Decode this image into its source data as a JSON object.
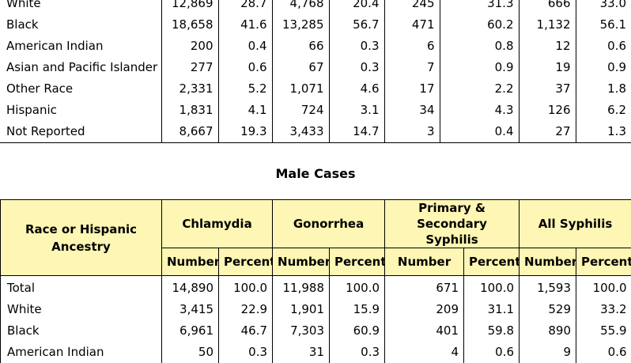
{
  "top_rows": [
    {
      "label": "White",
      "values": [
        "12,869",
        "28.7",
        "4,768",
        "20.4",
        "245",
        "31.3",
        "666",
        "33.0"
      ]
    },
    {
      "label": "Black",
      "values": [
        "18,658",
        "41.6",
        "13,285",
        "56.7",
        "471",
        "60.2",
        "1,132",
        "56.1"
      ]
    },
    {
      "label": "American Indian",
      "values": [
        "200",
        "0.4",
        "66",
        "0.3",
        "6",
        "0.8",
        "12",
        "0.6"
      ]
    },
    {
      "label": "Asian and Pacific Islander",
      "values": [
        "277",
        "0.6",
        "67",
        "0.3",
        "7",
        "0.9",
        "19",
        "0.9"
      ]
    },
    {
      "label": "Other Race",
      "values": [
        "2,331",
        "5.2",
        "1,071",
        "4.6",
        "17",
        "2.2",
        "37",
        "1.8"
      ]
    },
    {
      "label": "Hispanic",
      "values": [
        "1,831",
        "4.1",
        "724",
        "3.1",
        "34",
        "4.3",
        "126",
        "6.2"
      ]
    },
    {
      "label": "Not Reported",
      "values": [
        "8,667",
        "19.3",
        "3,433",
        "14.7",
        "3",
        "0.4",
        "27",
        "1.3"
      ]
    }
  ],
  "male": {
    "title": "Male Cases",
    "race_header": "Race or Hispanic Ancestry",
    "groups": [
      "Chlamydia",
      "Gonorrhea",
      "Primary & Secondary Syphilis",
      "All Syphilis"
    ],
    "sub_headers": [
      "Number",
      "Percent",
      "Number",
      "Percent",
      "Number",
      "Percent",
      "Number",
      "Percent"
    ],
    "rows": [
      {
        "label": "Total",
        "values": [
          "14,890",
          "100.0",
          "11,988",
          "100.0",
          "671",
          "100.0",
          "1,593",
          "100.0"
        ]
      },
      {
        "label": "White",
        "values": [
          "3,415",
          "22.9",
          "1,901",
          "15.9",
          "209",
          "31.1",
          "529",
          "33.2"
        ]
      },
      {
        "label": "Black",
        "values": [
          "6,961",
          "46.7",
          "7,303",
          "60.9",
          "401",
          "59.8",
          "890",
          "55.9"
        ]
      },
      {
        "label": "American Indian",
        "values": [
          "50",
          "0.3",
          "31",
          "0.3",
          "4",
          "0.6",
          "9",
          "0.6"
        ]
      }
    ]
  }
}
